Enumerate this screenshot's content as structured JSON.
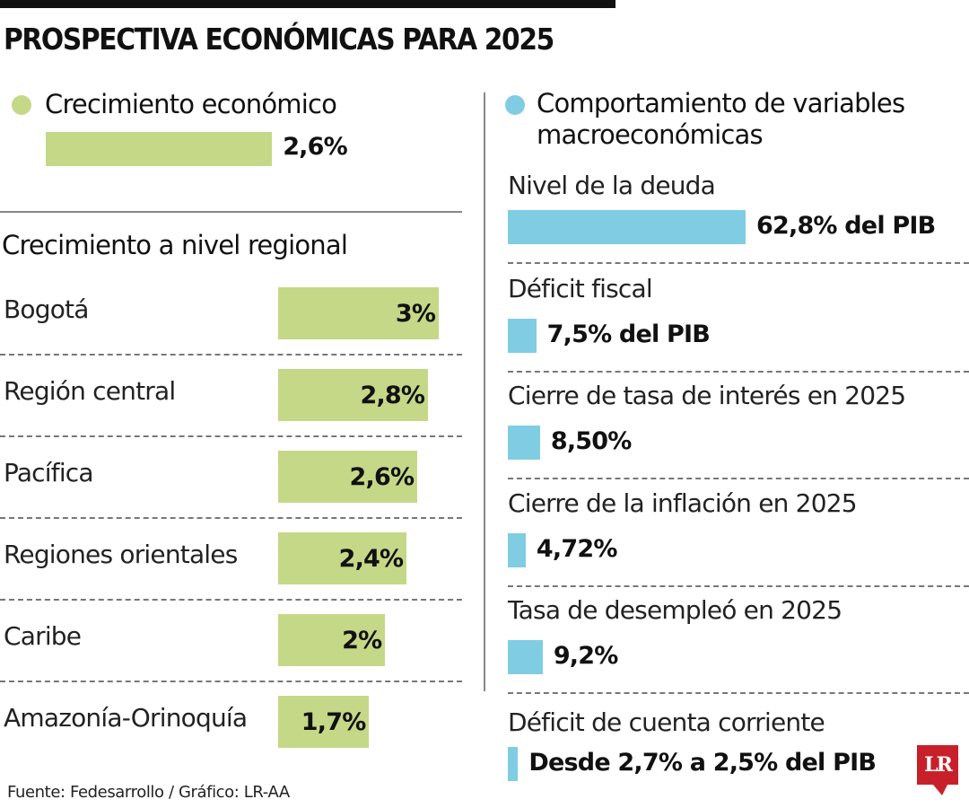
{
  "title": "PROSPECTIVA ECONÓMICAS PARA 2025",
  "colors": {
    "green": "#c5d887",
    "blue": "#80cde3",
    "logo_red": "#c8202a"
  },
  "footer": "Fuente: Fedesarrollo / Gráfico: LR-AA",
  "logo": "LR",
  "chart_data": [
    {
      "type": "bar",
      "title": "Crecimiento económico",
      "categories": [
        ""
      ],
      "values": [
        2.6
      ],
      "labels": [
        "2,6%"
      ]
    },
    {
      "type": "bar",
      "orientation": "horizontal",
      "title": "Crecimiento a nivel regional",
      "categories": [
        "Bogotá",
        "Región central",
        "Pacífica",
        "Regiones orientales",
        "Caribe",
        "Amazonía-Orinoquía"
      ],
      "values": [
        3,
        2.8,
        2.6,
        2.4,
        2,
        1.7
      ],
      "labels": [
        "3%",
        "2,8%",
        "2,6%",
        "2,4%",
        "2%",
        "1,7%"
      ]
    },
    {
      "type": "bar",
      "orientation": "horizontal",
      "title": "Comportamiento de variables macroeconómicas",
      "title_lines": [
        "Comportamiento de variables",
        "macroeconómicas"
      ],
      "categories": [
        "Nivel de la deuda",
        "Déficit fiscal",
        "Cierre de tasa de interés en 2025",
        "Cierre de la inflación en 2025",
        "Tasa de desempleó en 2025",
        "Déficit de cuenta corriente"
      ],
      "values": [
        62.8,
        7.5,
        8.5,
        4.72,
        9.2,
        2.7
      ],
      "labels": [
        "62,8% del PIB",
        "7,5% del PIB",
        "8,50%",
        "4,72%",
        "9,2%",
        "Desde 2,7% a 2,5% del PIB"
      ]
    }
  ]
}
